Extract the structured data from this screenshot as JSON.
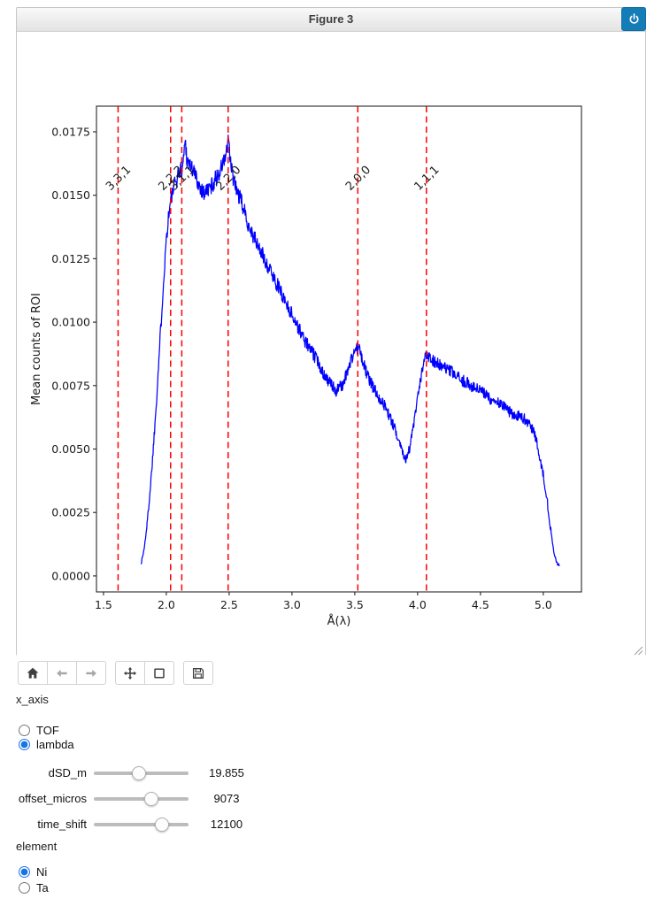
{
  "window": {
    "title": "Figure 3"
  },
  "toolbar": {
    "groups": [
      [
        "home",
        "back",
        "forward"
      ],
      [
        "pan",
        "zoom-rect"
      ],
      [
        "save"
      ]
    ],
    "disabled": [
      "back",
      "forward"
    ]
  },
  "controls": {
    "x_axis": {
      "label": "x_axis",
      "options": [
        {
          "label": "TOF",
          "selected": false
        },
        {
          "label": "lambda",
          "selected": true
        }
      ]
    },
    "sliders": [
      {
        "label": "dSD_m",
        "value": "19.855",
        "fraction": 0.47
      },
      {
        "label": "offset_micros",
        "value": "9073",
        "fraction": 0.63
      },
      {
        "label": "time_shift",
        "value": "12100",
        "fraction": 0.76
      }
    ],
    "element": {
      "label": "element",
      "options": [
        {
          "label": "Ni",
          "selected": true
        },
        {
          "label": "Ta",
          "selected": false
        }
      ]
    }
  },
  "chart_data": {
    "type": "line",
    "title": "",
    "xlabel": "Å(λ)",
    "ylabel": "Mean counts of ROI",
    "xlim": [
      1.444,
      5.304
    ],
    "ylim": [
      -0.00063,
      0.01851
    ],
    "xticks": [
      1.5,
      2.0,
      2.5,
      3.0,
      3.5,
      4.0,
      4.5,
      5.0
    ],
    "yticks": [
      0.0,
      0.0025,
      0.005,
      0.0075,
      0.01,
      0.0125,
      0.015,
      0.0175
    ],
    "grid": false,
    "legend": "none",
    "noise_amplitude": 0.00026,
    "series": [
      {
        "name": "Mean counts of ROI",
        "color": "#0000ff",
        "anchors": [
          [
            1.8,
            0.0005
          ],
          [
            1.825,
            0.0011
          ],
          [
            1.85,
            0.0022
          ],
          [
            1.875,
            0.0036
          ],
          [
            1.9,
            0.0053
          ],
          [
            1.925,
            0.0072
          ],
          [
            1.95,
            0.0093
          ],
          [
            1.975,
            0.0114
          ],
          [
            2.0,
            0.0133
          ],
          [
            2.02,
            0.0143
          ],
          [
            2.04,
            0.0149
          ],
          [
            2.06,
            0.0153
          ],
          [
            2.08,
            0.0156
          ],
          [
            2.1,
            0.0159
          ],
          [
            2.13,
            0.0161
          ],
          [
            2.15,
            0.0172
          ],
          [
            2.165,
            0.0164
          ],
          [
            2.19,
            0.0162
          ],
          [
            2.22,
            0.0159
          ],
          [
            2.26,
            0.0154
          ],
          [
            2.3,
            0.0151
          ],
          [
            2.35,
            0.0153
          ],
          [
            2.4,
            0.0157
          ],
          [
            2.44,
            0.0161
          ],
          [
            2.47,
            0.0165
          ],
          [
            2.495,
            0.0171
          ],
          [
            2.515,
            0.0161
          ],
          [
            2.55,
            0.0153
          ],
          [
            2.6,
            0.0147
          ],
          [
            2.65,
            0.0139
          ],
          [
            2.7,
            0.0133
          ],
          [
            2.75,
            0.0128
          ],
          [
            2.8,
            0.0123
          ],
          [
            2.85,
            0.0118
          ],
          [
            2.9,
            0.0113
          ],
          [
            2.95,
            0.0108
          ],
          [
            3.0,
            0.0103
          ],
          [
            3.05,
            0.0098
          ],
          [
            3.1,
            0.0093
          ],
          [
            3.15,
            0.0089
          ],
          [
            3.2,
            0.0085
          ],
          [
            3.25,
            0.008
          ],
          [
            3.3,
            0.0076
          ],
          [
            3.35,
            0.0073
          ],
          [
            3.4,
            0.0075
          ],
          [
            3.45,
            0.0082
          ],
          [
            3.5,
            0.0089
          ],
          [
            3.53,
            0.009
          ],
          [
            3.56,
            0.0085
          ],
          [
            3.6,
            0.0079
          ],
          [
            3.65,
            0.0074
          ],
          [
            3.7,
            0.007
          ],
          [
            3.75,
            0.0066
          ],
          [
            3.8,
            0.006
          ],
          [
            3.85,
            0.0054
          ],
          [
            3.88,
            0.0049
          ],
          [
            3.91,
            0.0046
          ],
          [
            3.94,
            0.0051
          ],
          [
            3.98,
            0.0063
          ],
          [
            4.02,
            0.0076
          ],
          [
            4.05,
            0.0084
          ],
          [
            4.07,
            0.0088
          ],
          [
            4.1,
            0.0086
          ],
          [
            4.15,
            0.0084
          ],
          [
            4.2,
            0.0082
          ],
          [
            4.25,
            0.0081
          ],
          [
            4.3,
            0.0079
          ],
          [
            4.35,
            0.0077
          ],
          [
            4.4,
            0.0076
          ],
          [
            4.45,
            0.0074
          ],
          [
            4.5,
            0.0073
          ],
          [
            4.55,
            0.0071
          ],
          [
            4.6,
            0.0069
          ],
          [
            4.65,
            0.0068
          ],
          [
            4.7,
            0.0066
          ],
          [
            4.75,
            0.0064
          ],
          [
            4.8,
            0.0063
          ],
          [
            4.85,
            0.0062
          ],
          [
            4.9,
            0.0059
          ],
          [
            4.93,
            0.0056
          ],
          [
            4.96,
            0.005
          ],
          [
            5.0,
            0.004
          ],
          [
            5.03,
            0.003
          ],
          [
            5.06,
            0.0018
          ],
          [
            5.09,
            0.0008
          ],
          [
            5.11,
            0.0005
          ],
          [
            5.13,
            0.0004
          ]
        ]
      }
    ],
    "bragg_edges": {
      "color": "#ff0000",
      "style": "dashed",
      "label_rotation_deg": 45,
      "items": [
        {
          "label": "3,3,1",
          "x": 1.616
        },
        {
          "label": "2,2,2",
          "x": 2.034
        },
        {
          "label": "3,1,1",
          "x": 2.123
        },
        {
          "label": "2,2,0",
          "x": 2.492
        },
        {
          "label": "2,0,0",
          "x": 3.524
        },
        {
          "label": "1,1,1",
          "x": 4.07
        }
      ]
    }
  }
}
